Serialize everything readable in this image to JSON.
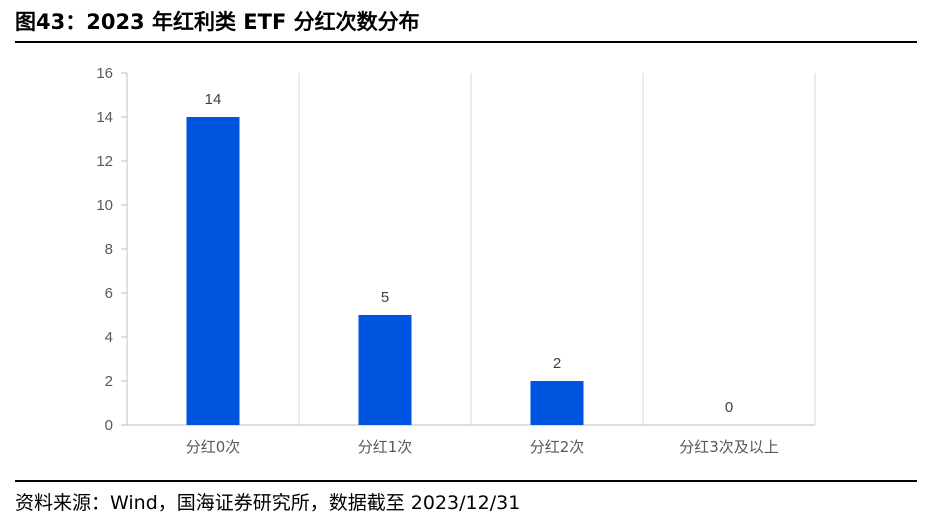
{
  "title": "图43：2023 年红利类 ETF 分红次数分布",
  "source": "资料来源：Wind，国海证券研究所，数据截至 2023/12/31",
  "colors": {
    "bar": "#0055e0",
    "grid": "#d9d9d9",
    "axis": "#bfbfbf"
  },
  "chart_data": {
    "type": "bar",
    "categories": [
      "分红0次",
      "分红1次",
      "分红2次",
      "分红3次及以上"
    ],
    "values": [
      14,
      5,
      2,
      0
    ],
    "data_labels": [
      "14",
      "5",
      "2",
      "0"
    ],
    "ylim": [
      0,
      16
    ],
    "yticks": [
      "0",
      "2",
      "4",
      "6",
      "8",
      "10",
      "12",
      "14",
      "16"
    ],
    "xlabel": "",
    "ylabel": "",
    "grid": "vertical separators between categories",
    "legend": "none"
  }
}
